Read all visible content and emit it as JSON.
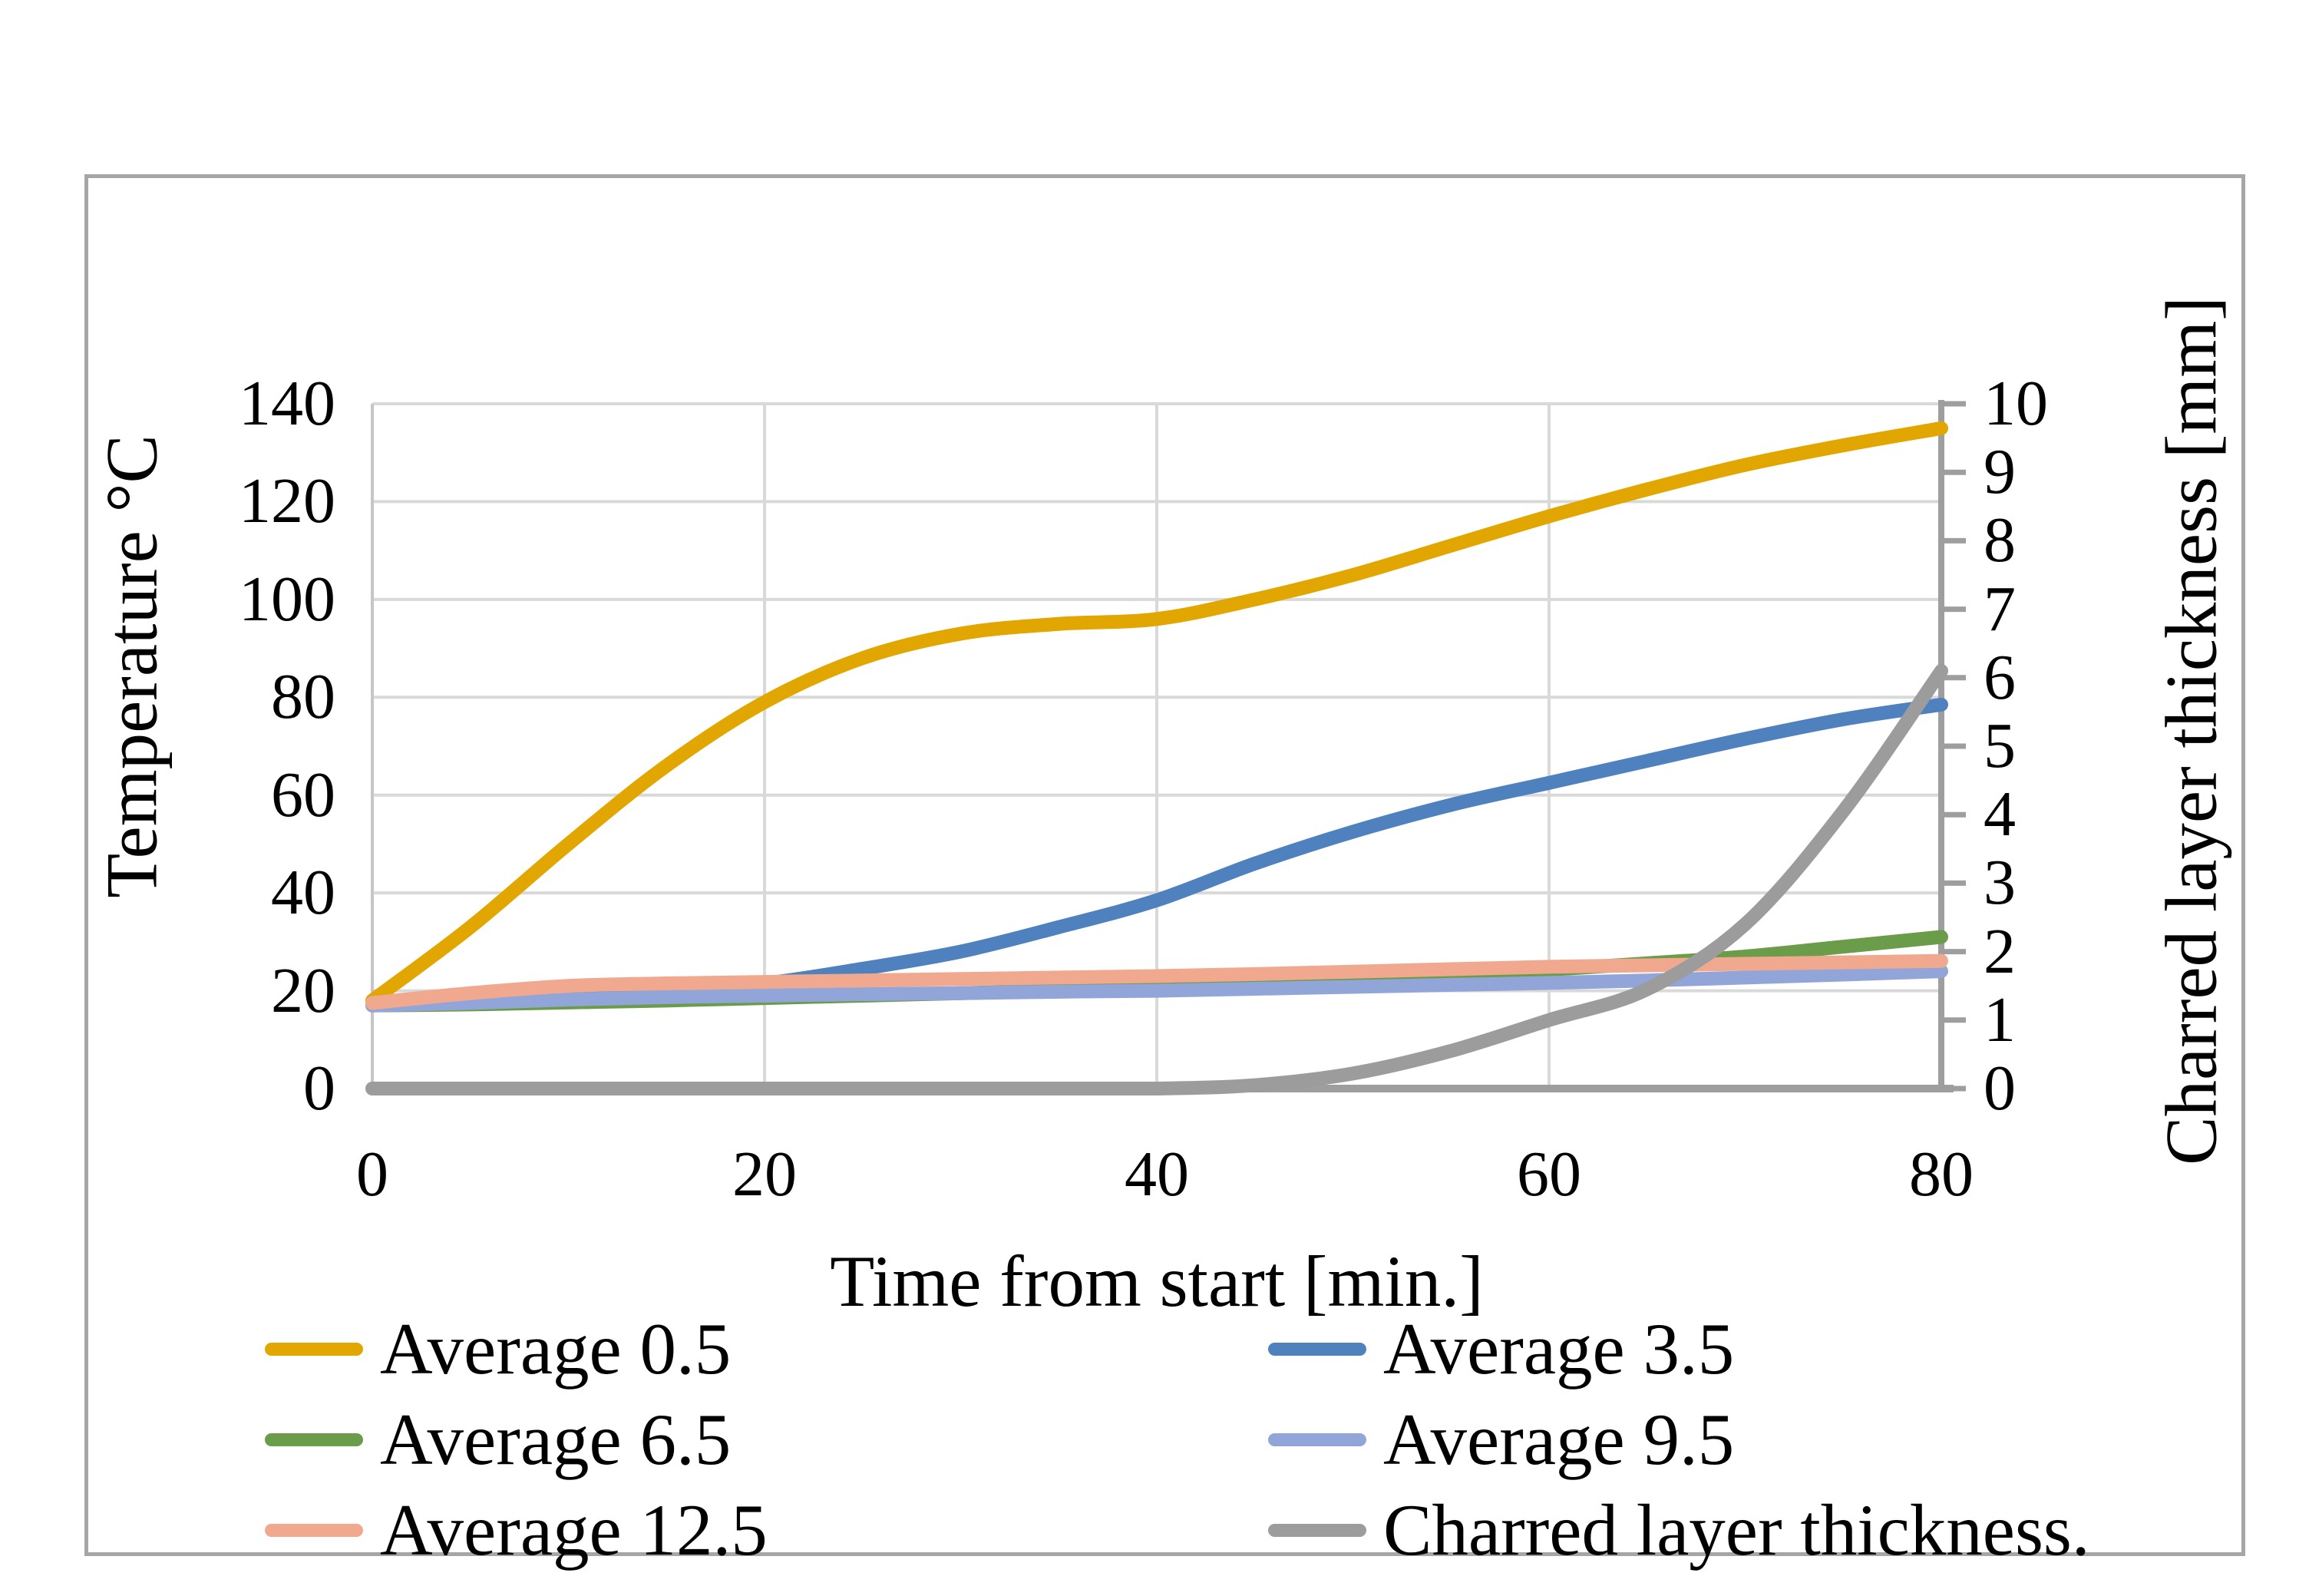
{
  "figure": {
    "background": "#FFFFFF",
    "border_color": "#A6A6A6",
    "gridline_color": "#D9D9D9",
    "axis_color": "#9E9E9E",
    "plot_left_edge_color": "#C6C6C6"
  },
  "chart_data": {
    "type": "line",
    "title": "",
    "xlabel": "Time from start [min.]",
    "ylabel_left": "Temperature °C",
    "ylabel_right": "Charred layer thickness [mm]",
    "xlim": [
      0,
      80
    ],
    "ylim_left": [
      0,
      140
    ],
    "ylim_right": [
      0,
      10
    ],
    "x_ticks": [
      0,
      20,
      40,
      60,
      80
    ],
    "y_left_ticks": [
      0,
      20,
      40,
      60,
      80,
      100,
      120,
      140
    ],
    "y_right_ticks": [
      0,
      1,
      2,
      3,
      4,
      5,
      6,
      7,
      8,
      9,
      10
    ],
    "grid": true,
    "legend_position": "bottom-two-columns",
    "x": [
      0,
      5,
      10,
      15,
      20,
      25,
      30,
      35,
      40,
      45,
      50,
      55,
      60,
      65,
      70,
      75,
      80
    ],
    "series": [
      {
        "name": "Average 0.5",
        "axis": "left",
        "color": "#E2A600",
        "values": [
          18,
          33,
          50,
          66,
          79,
          88,
          93,
          95,
          96,
          100,
          105,
          111,
          117,
          122.5,
          127.5,
          131.5,
          135
        ]
      },
      {
        "name": "Average 3.5",
        "axis": "left",
        "color": "#4E81BD",
        "values": [
          17,
          17.5,
          18.5,
          20,
          21.5,
          24.5,
          28,
          33,
          38.5,
          46,
          52.5,
          58,
          62.5,
          67,
          71.5,
          75.5,
          78.5
        ]
      },
      {
        "name": "Average 6.5",
        "axis": "left",
        "color": "#6B9C49",
        "values": [
          17,
          17.2,
          17.6,
          18,
          18.5,
          19,
          19.5,
          20,
          20.5,
          21.2,
          22,
          23,
          24.3,
          25.6,
          27,
          29,
          31
        ]
      },
      {
        "name": "Average 9.5",
        "axis": "left",
        "color": "#92A5D8",
        "values": [
          17,
          17.5,
          18.2,
          18.7,
          19,
          19.3,
          19.5,
          19.8,
          20,
          20.4,
          20.8,
          21.2,
          21.6,
          22.1,
          22.7,
          23.3,
          24
        ]
      },
      {
        "name": "Average 12.5",
        "axis": "left",
        "color": "#F0A88E",
        "values": [
          17.5,
          19.5,
          21,
          21.5,
          21.8,
          22.1,
          22.4,
          22.7,
          23,
          23.4,
          23.9,
          24.4,
          24.9,
          25.2,
          25.5,
          25.8,
          26.1
        ]
      },
      {
        "name": "Charred layer thickness.",
        "axis": "right",
        "color": "#9C9C9C",
        "values": [
          0,
          0,
          0,
          0,
          0,
          0,
          0,
          0,
          0,
          0.05,
          0.22,
          0.55,
          1.0,
          1.45,
          2.4,
          4.05,
          6.1
        ]
      }
    ],
    "legend_columns": [
      [
        0,
        2,
        4
      ],
      [
        1,
        3,
        5
      ]
    ]
  }
}
